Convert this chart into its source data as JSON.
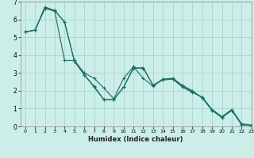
{
  "xlabel": "Humidex (Indice chaleur)",
  "bg_color": "#cceee8",
  "grid_color": "#aad4ce",
  "line_color": "#1a6e64",
  "xlim": [
    -0.5,
    23
  ],
  "ylim": [
    0,
    7
  ],
  "xticks": [
    0,
    1,
    2,
    3,
    4,
    5,
    6,
    7,
    8,
    9,
    10,
    11,
    12,
    13,
    14,
    15,
    16,
    17,
    18,
    19,
    20,
    21,
    22,
    23
  ],
  "yticks": [
    0,
    1,
    2,
    3,
    4,
    5,
    6,
    7
  ],
  "series1": [
    5.3,
    5.4,
    6.6,
    6.5,
    5.85,
    3.65,
    2.9,
    2.2,
    1.5,
    1.5,
    2.2,
    3.3,
    3.25,
    2.3,
    2.6,
    2.65,
    2.25,
    1.95,
    1.6,
    0.9,
    0.5,
    0.9,
    0.1,
    0.05
  ],
  "series2": [
    5.3,
    5.4,
    6.65,
    6.45,
    3.7,
    3.7,
    3.0,
    2.7,
    2.15,
    1.55,
    2.7,
    3.35,
    2.7,
    2.25,
    2.65,
    2.65,
    2.2,
    1.9,
    1.65,
    0.95,
    0.55,
    0.95,
    0.15,
    0.08
  ],
  "series3": [
    5.3,
    5.4,
    6.7,
    6.5,
    5.85,
    3.65,
    2.9,
    2.25,
    1.5,
    1.5,
    2.2,
    3.25,
    3.3,
    2.3,
    2.65,
    2.7,
    2.3,
    2.0,
    1.6,
    0.9,
    0.5,
    0.9,
    0.1,
    0.05
  ]
}
